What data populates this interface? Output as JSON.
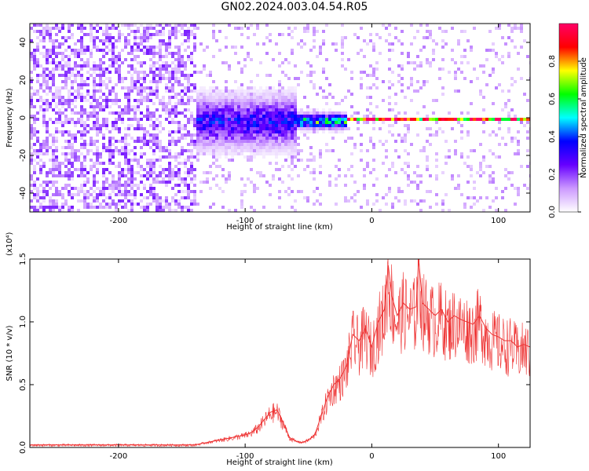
{
  "title": "GN02.2024.003.04.54.R05",
  "chart_data": [
    {
      "type": "heatmap",
      "xlabel": "Height of straight line (km)",
      "ylabel": "Frequency (Hz)",
      "xlim": [
        -270,
        125
      ],
      "ylim": [
        -50,
        50
      ],
      "xticks": [
        -200,
        -100,
        0,
        100
      ],
      "yticks": [
        -40,
        -20,
        0,
        20,
        40
      ],
      "colorbar": {
        "label": "Normalized spectral amplitude",
        "range": [
          0.0,
          1.0
        ],
        "ticks": [
          "0.0",
          "0.2",
          "0.4",
          "0.6",
          "0.8"
        ],
        "colors": [
          "#ffffff",
          "#cc99ff",
          "#6600ff",
          "#0000ff",
          "#00ffff",
          "#00ff00",
          "#ffff00",
          "#ff0000",
          "#ff0066"
        ]
      },
      "regions": [
        {
          "x_range": [
            -270,
            -140
          ],
          "freq_range": [
            -50,
            50
          ],
          "amplitude": 0.08,
          "pattern": "diffuse noise"
        },
        {
          "x_range": [
            -140,
            -60
          ],
          "freq_range": [
            -15,
            12
          ],
          "amplitude": 0.3,
          "pattern": "scattered signal"
        },
        {
          "x_range": [
            -60,
            -20
          ],
          "freq_range": [
            -5,
            3
          ],
          "amplitude": 0.55,
          "pattern": "narrowing signal"
        },
        {
          "x_range": [
            -20,
            125
          ],
          "freq_range": [
            -1,
            1
          ],
          "amplitude": 0.9,
          "pattern": "narrow line at 0 Hz"
        }
      ]
    },
    {
      "type": "line",
      "xlabel": "Height of straight line (km)",
      "ylabel": "SNR (10 * v/v)",
      "y_multiplier": "(x10⁴)",
      "xlim": [
        -270,
        125
      ],
      "ylim": [
        0,
        1.5
      ],
      "xticks": [
        -200,
        -100,
        0,
        100
      ],
      "yticks": [
        "0.0",
        "0.5",
        "1.0",
        "1.5"
      ],
      "line_color": "#ee3333",
      "series": [
        {
          "x": [
            -270,
            -250,
            -220,
            -190,
            -160,
            -140,
            -130,
            -120,
            -110,
            -100,
            -95,
            -90,
            -85,
            -80,
            -75,
            -70,
            -65,
            -60,
            -55,
            -50,
            -45,
            -40,
            -35,
            -30,
            -25,
            -20,
            -15,
            -10,
            -5,
            0,
            5,
            10,
            13,
            16,
            20,
            25,
            30,
            35,
            37,
            40,
            45,
            50,
            55,
            60,
            65,
            70,
            75,
            80,
            85,
            90,
            95,
            100,
            105,
            110,
            115,
            120,
            125
          ],
          "y": [
            0.02,
            0.02,
            0.02,
            0.02,
            0.02,
            0.02,
            0.04,
            0.06,
            0.08,
            0.1,
            0.12,
            0.16,
            0.22,
            0.28,
            0.3,
            0.2,
            0.08,
            0.05,
            0.04,
            0.06,
            0.1,
            0.25,
            0.4,
            0.5,
            0.55,
            0.65,
            0.9,
            0.85,
            0.95,
            0.8,
            1.0,
            1.1,
            1.45,
            1.2,
            1.05,
            1.15,
            1.1,
            1.12,
            1.5,
            1.15,
            1.1,
            1.05,
            1.1,
            1.0,
            1.05,
            1.02,
            1.0,
            0.98,
            1.05,
            0.95,
            0.9,
            0.88,
            0.85,
            0.85,
            0.8,
            0.82,
            0.8
          ]
        }
      ]
    }
  ]
}
